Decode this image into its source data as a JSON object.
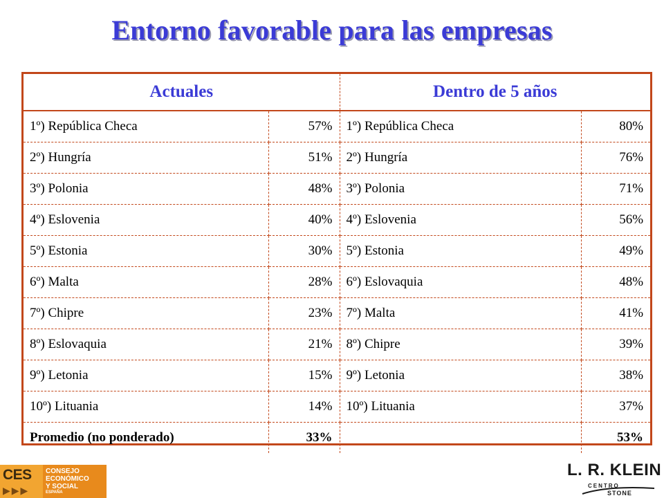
{
  "title": "Entorno favorable para las empresas",
  "table": {
    "headers": [
      "Actuales",
      "Dentro de 5 años"
    ],
    "rows": [
      {
        "a_name": "1º) República Checa",
        "a_pct": "57%",
        "b_name": "1º) República Checa",
        "b_pct": "80%"
      },
      {
        "a_name": "2º) Hungría",
        "a_pct": "51%",
        "b_name": "2º) Hungría",
        "b_pct": "76%"
      },
      {
        "a_name": "3º) Polonia",
        "a_pct": "48%",
        "b_name": "3º) Polonia",
        "b_pct": "71%"
      },
      {
        "a_name": "4º) Eslovenia",
        "a_pct": "40%",
        "b_name": "4º) Eslovenia",
        "b_pct": "56%"
      },
      {
        "a_name": "5º) Estonia",
        "a_pct": "30%",
        "b_name": "5º) Estonia",
        "b_pct": "49%"
      },
      {
        "a_name": "6º) Malta",
        "a_pct": "28%",
        "b_name": "6º) Eslovaquia",
        "b_pct": "48%"
      },
      {
        "a_name": "7º) Chipre",
        "a_pct": "23%",
        "b_name": "7º) Malta",
        "b_pct": "41%"
      },
      {
        "a_name": "8º) Eslovaquia",
        "a_pct": "21%",
        "b_name": "8º) Chipre",
        "b_pct": "39%"
      },
      {
        "a_name": "9º) Letonia",
        "a_pct": "15%",
        "b_name": "9º) Letonia",
        "b_pct": "38%"
      },
      {
        "a_name": "10º) Lituania",
        "a_pct": "14%",
        "b_name": "10º) Lituania",
        "b_pct": "37%"
      }
    ],
    "average": {
      "label": "Promedio (no ponderado)",
      "a_pct": "33%",
      "b_label": "",
      "b_pct": "53%"
    }
  },
  "logos": {
    "ces": {
      "mark": "CES",
      "line1": "CONSEJO",
      "line2": "ECONÓMICO",
      "line3": "Y SOCIAL",
      "line4": "ESPAÑA"
    },
    "klein": {
      "main": "L. R. KLEIN",
      "sub": "CENTRO",
      "sub2": "STONE"
    }
  },
  "colors": {
    "title": "#3b3bd6",
    "border": "#c2471a",
    "header": "#3b3bd6"
  }
}
